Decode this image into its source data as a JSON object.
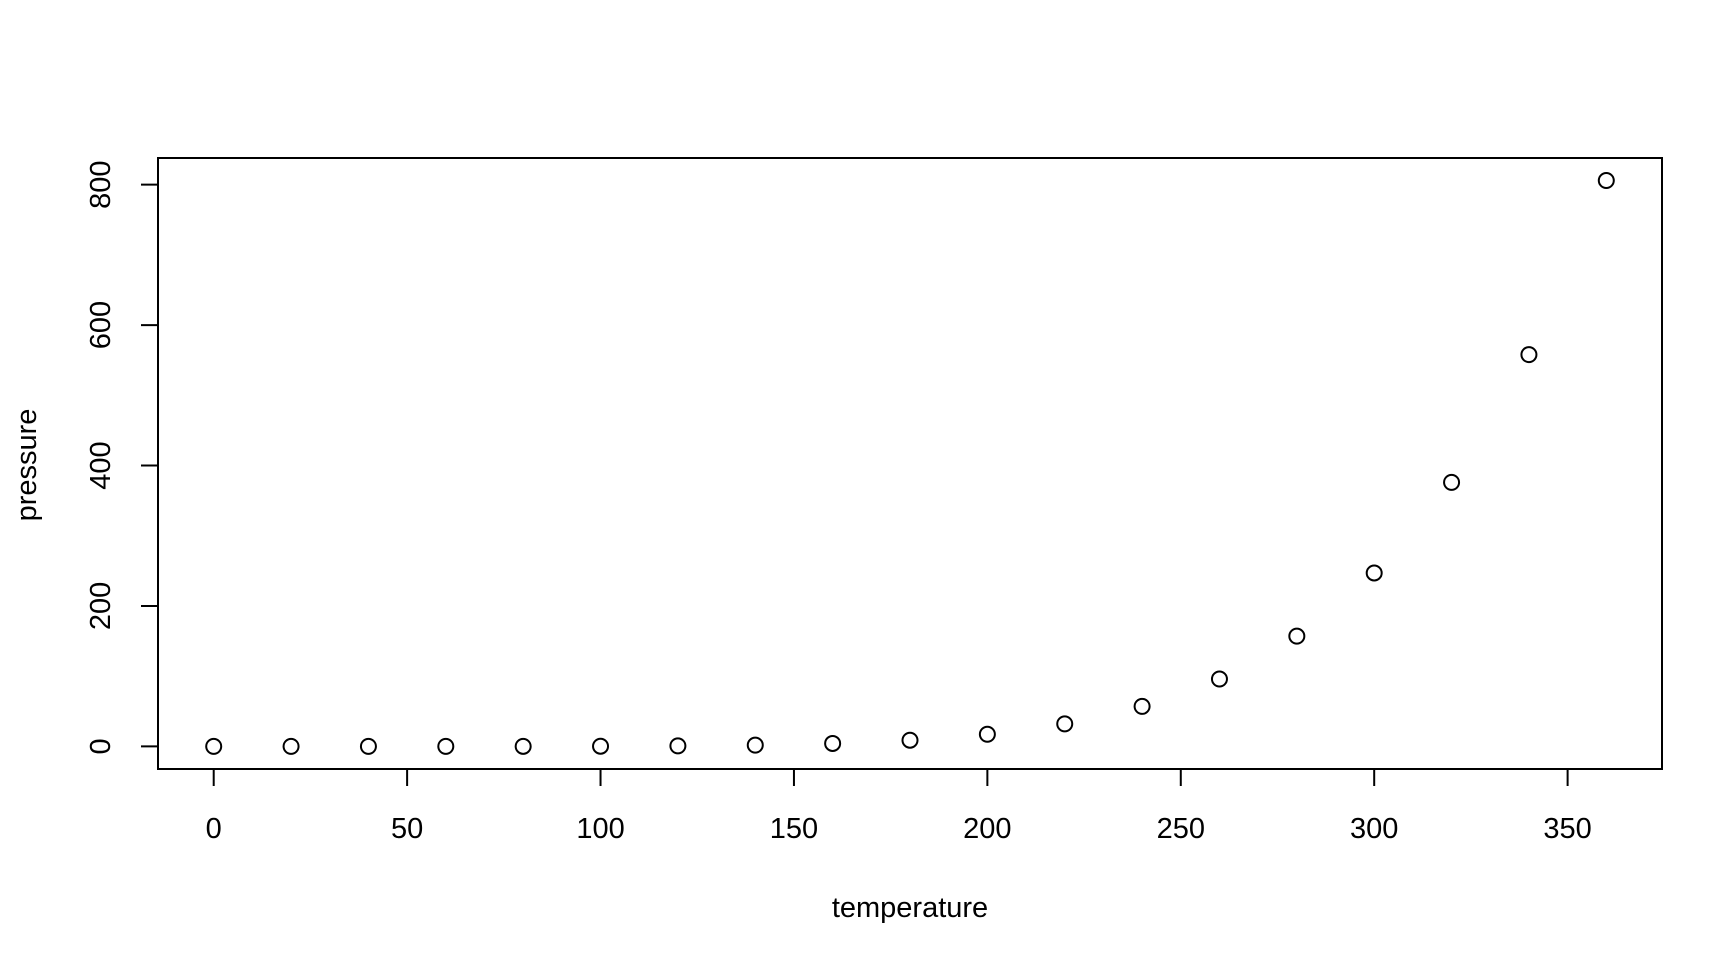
{
  "chart_data": {
    "type": "scatter",
    "title": "",
    "xlabel": "temperature",
    "ylabel": "pressure",
    "xlim": [
      -14.4,
      374.4
    ],
    "ylim": [
      -32.2,
      838.0
    ],
    "x_ticks": [
      0,
      50,
      100,
      150,
      200,
      250,
      300,
      350
    ],
    "y_ticks": [
      0,
      200,
      400,
      600,
      800
    ],
    "x_tick_labels": [
      "0",
      "50",
      "100",
      "150",
      "200",
      "250",
      "300",
      "350"
    ],
    "y_tick_labels": [
      "0",
      "200",
      "400",
      "600",
      "800"
    ],
    "grid": false,
    "legend": false,
    "marker": "open-circle",
    "series": [
      {
        "x": [
          0,
          20,
          40,
          60,
          80,
          100,
          120,
          140,
          160,
          180,
          200,
          220,
          240,
          260,
          280,
          300,
          320,
          340,
          360
        ],
        "y": [
          0.0002,
          0.0012,
          0.006,
          0.03,
          0.09,
          0.27,
          0.75,
          1.85,
          4.2,
          8.8,
          17.3,
          32.1,
          57,
          96,
          157,
          247,
          376,
          558,
          806
        ]
      }
    ]
  }
}
